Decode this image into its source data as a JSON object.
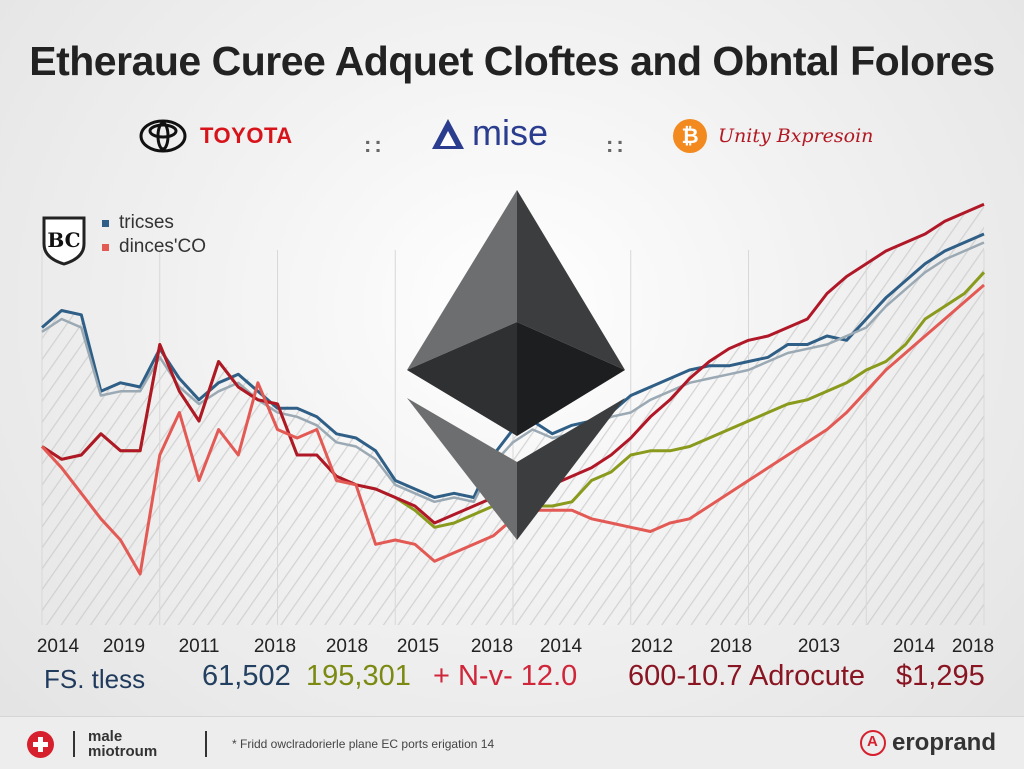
{
  "title": "Etheraue Curee Adquet Cloftes and Obntal Folores",
  "brands": {
    "toyota": "TOYOTA",
    "mise": "mise",
    "bitcoin_tagline": "Unity Bxpresoin",
    "separator": "::",
    "legend_badge": "BC"
  },
  "chart_data": {
    "type": "line",
    "title": "",
    "xlabel": "",
    "ylabel": "",
    "x_ticks": [
      "2014",
      "2019",
      "2011",
      "2018",
      "2018",
      "2015",
      "2018",
      "2014",
      "2012",
      "2018",
      "2013",
      "2014",
      "2018"
    ],
    "x_index": [
      0,
      1,
      2,
      3,
      4,
      5,
      6,
      7,
      8,
      9,
      10,
      11,
      12,
      13,
      14,
      15,
      16,
      17,
      18,
      19,
      20,
      21,
      22,
      23,
      24,
      25,
      26,
      27,
      28,
      29,
      30,
      31,
      32,
      33,
      34,
      35,
      36,
      37,
      38,
      39,
      40,
      41,
      42,
      43,
      44,
      45,
      46,
      47,
      48
    ],
    "ylim": [
      0,
      100
    ],
    "legend": {
      "position": "top-left"
    },
    "series": [
      {
        "name": "tricses",
        "color": "#2f5f86",
        "values": [
          70,
          74,
          73,
          55,
          57,
          56,
          65,
          58,
          53,
          57,
          59,
          55,
          51,
          51,
          49,
          45,
          44,
          41,
          34,
          32,
          30,
          31,
          30,
          40,
          46,
          48,
          45,
          47,
          48,
          50,
          54,
          56,
          58,
          60,
          61,
          61,
          62,
          63,
          66,
          66,
          68,
          67,
          72,
          77,
          81,
          85,
          88,
          90,
          92
        ]
      },
      {
        "name": "",
        "color": "#9aa9b3",
        "values": [
          69,
          72,
          70,
          54,
          55,
          55,
          63,
          56,
          52,
          55,
          57,
          53,
          50,
          49,
          47,
          43,
          42,
          39,
          33,
          31,
          29,
          30,
          29,
          38,
          43,
          46,
          44,
          45,
          47,
          49,
          50,
          53,
          55,
          57,
          58,
          59,
          60,
          62,
          64,
          65,
          66,
          68,
          70,
          75,
          79,
          83,
          86,
          88,
          90
        ]
      },
      {
        "name": "",
        "color": "#8a9a1c",
        "values": [
          42,
          39,
          40,
          45,
          41,
          41,
          66,
          55,
          48,
          62,
          56,
          53,
          52,
          40,
          40,
          35,
          33,
          32,
          30,
          27,
          23,
          24,
          26,
          28,
          29,
          28,
          28,
          29,
          34,
          36,
          40,
          41,
          41,
          42,
          44,
          46,
          48,
          50,
          52,
          53,
          55,
          57,
          60,
          62,
          66,
          72,
          75,
          78,
          83
        ]
      },
      {
        "name": "",
        "color": "#b01828",
        "values": [
          42,
          39,
          40,
          45,
          41,
          41,
          66,
          55,
          48,
          62,
          56,
          53,
          52,
          40,
          40,
          35,
          33,
          32,
          30,
          28,
          24,
          26,
          28,
          30,
          31,
          31,
          33,
          35,
          37,
          40,
          44,
          49,
          53,
          58,
          62,
          65,
          67,
          68,
          70,
          72,
          78,
          82,
          85,
          88,
          90,
          92,
          95,
          97,
          99
        ]
      },
      {
        "name": "dinces'CO",
        "color": "#e35a55",
        "values": [
          42,
          37,
          31,
          25,
          20,
          12,
          40,
          50,
          34,
          46,
          40,
          57,
          46,
          44,
          46,
          34,
          33,
          19,
          20,
          19,
          15,
          17,
          19,
          21,
          25,
          27,
          27,
          27,
          25,
          24,
          23,
          22,
          24,
          25,
          28,
          31,
          34,
          37,
          40,
          43,
          46,
          50,
          55,
          60,
          64,
          68,
          72,
          76,
          80
        ]
      }
    ]
  },
  "stats": [
    "FS. tless",
    "61,502",
    "195,301",
    "+ N-v- 12.0",
    "600-10.7 Adrocute",
    "$1,295"
  ],
  "footer": {
    "brand_line1": "male",
    "brand_line2": "miotroum",
    "note": "* Fridd owclradorierle plane EC ports erigation 14",
    "right_brand": "eroprand"
  }
}
